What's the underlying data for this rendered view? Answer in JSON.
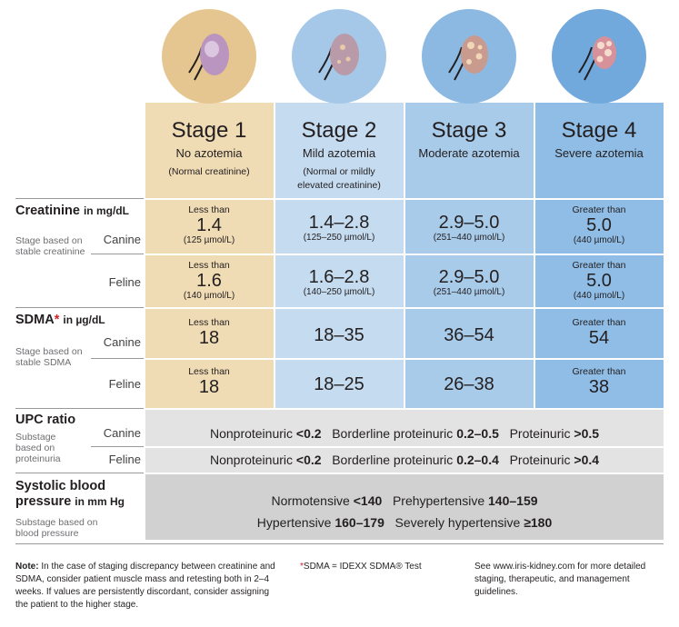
{
  "colors": {
    "stage1": "#efdbb4",
    "stage2": "#c5dbef",
    "stage3": "#a9cbea",
    "stage4": "#8fbde6",
    "grey": "#e3e3e3",
    "grey_dark": "#d1d1d1",
    "accent_red": "#d2232a"
  },
  "stages": [
    {
      "title": "Stage 1",
      "subtitle": "No azotemia",
      "note": "(Normal creatinine)",
      "icon": "kidney-normal-icon"
    },
    {
      "title": "Stage 2",
      "subtitle": "Mild azotemia",
      "note": "(Normal or mildly elevated creatinine)",
      "icon": "kidney-mild-icon"
    },
    {
      "title": "Stage 3",
      "subtitle": "Moderate azotemia",
      "note": "",
      "icon": "kidney-moderate-icon"
    },
    {
      "title": "Stage 4",
      "subtitle": "Severe azotemia",
      "note": "",
      "icon": "kidney-severe-icon"
    }
  ],
  "creatinine": {
    "title": "Creatinine",
    "unit": "in mg/dL",
    "desc": "Stage based on stable creatinine",
    "canine_label": "Canine",
    "feline_label": "Feline",
    "canine": [
      {
        "pre": "Less than",
        "value": "1.4",
        "unit": "(125 µmol/L)"
      },
      {
        "pre": "",
        "value": "1.4–2.8",
        "unit": "(125–250 µmol/L)"
      },
      {
        "pre": "",
        "value": "2.9–5.0",
        "unit": "(251–440 µmol/L)"
      },
      {
        "pre": "Greater than",
        "value": "5.0",
        "unit": "(440 µmol/L)"
      }
    ],
    "feline": [
      {
        "pre": "Less than",
        "value": "1.6",
        "unit": "(140 µmol/L)"
      },
      {
        "pre": "",
        "value": "1.6–2.8",
        "unit": "(140–250 µmol/L)"
      },
      {
        "pre": "",
        "value": "2.9–5.0",
        "unit": "(251–440 µmol/L)"
      },
      {
        "pre": "Greater than",
        "value": "5.0",
        "unit": "(440 µmol/L)"
      }
    ]
  },
  "sdma": {
    "title": "SDMA",
    "asterisk": "*",
    "unit": "in µg/dL",
    "desc": "Stage based on stable SDMA",
    "canine_label": "Canine",
    "feline_label": "Feline",
    "canine": [
      {
        "pre": "Less than",
        "value": "18"
      },
      {
        "pre": "",
        "value": "18–35"
      },
      {
        "pre": "",
        "value": "36–54"
      },
      {
        "pre": "Greater than",
        "value": "54"
      }
    ],
    "feline": [
      {
        "pre": "Less than",
        "value": "18"
      },
      {
        "pre": "",
        "value": "18–25"
      },
      {
        "pre": "",
        "value": "26–38"
      },
      {
        "pre": "Greater than",
        "value": "38"
      }
    ]
  },
  "upc": {
    "title": "UPC ratio",
    "desc": "Substage based on proteinuria",
    "canine_label": "Canine",
    "feline_label": "Feline",
    "canine": {
      "a": "Nonproteinuric ",
      "a_v": "<0.2",
      "b": "Borderline proteinuric ",
      "b_v": "0.2–0.5",
      "c": "Proteinuric ",
      "c_v": ">0.5"
    },
    "feline": {
      "a": "Nonproteinuric ",
      "a_v": "<0.2",
      "b": "Borderline proteinuric ",
      "b_v": "0.2–0.4",
      "c": "Proteinuric ",
      "c_v": ">0.4"
    }
  },
  "bp": {
    "title_line1": "Systolic blood",
    "title_line2": "pressure",
    "unit": "in mm Hg",
    "desc": "Substage based on blood pressure",
    "row1": {
      "a": "Normotensive ",
      "a_v": "<140",
      "b": "Prehypertensive ",
      "b_v": "140–159"
    },
    "row2": {
      "a": "Hypertensive ",
      "a_v": "160–179",
      "b": "Severely hypertensive ",
      "b_v": "≥180"
    }
  },
  "footer": {
    "note_label": "Note:",
    "note_text": " In the case of staging discrepancy between creatinine and SDMA, consider patient muscle mass and retesting both in 2–4 weeks. If values are persistently discordant, consider assigning the patient to the higher stage.",
    "sdma_asterisk": "*",
    "sdma_text": "SDMA = IDEXX SDMA® Test",
    "link_text": "See www.iris-kidney.com for more detailed staging, therapeutic, and management guidelines."
  }
}
